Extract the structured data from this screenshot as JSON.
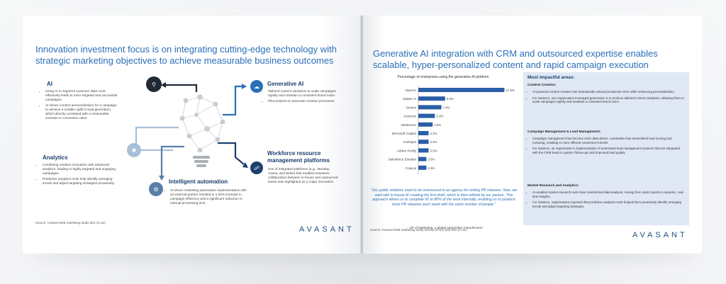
{
  "left": {
    "title": "Innovation investment focus is on integrating cutting-edge technology with strategic marketing objectives to achieve measurable business outcomes",
    "ai": {
      "heading": "AI",
      "bullets": [
        "Using AI to segment customer data more effectively leads to more targeted and successful campaigns.",
        "AI-driven content personalization for a campaign to achieve a notable uplift in lead generation, which directly correlated with a measurable increase in conversion rates."
      ]
    },
    "analytics": {
      "heading": "Analytics",
      "bullets": [
        "Combining creative innovation with advanced analytics, leading to highly targeted and engaging campaigns.",
        "Predictive analytics tools help identify emerging trends and adjust targeting strategies proactively."
      ]
    },
    "genai": {
      "heading": "Generative AI",
      "bullets": [
        "Tailored content variations to scale campaigns rapidly and maintain a consistent brand voice.",
        "Pilot projects to automate creative processes."
      ]
    },
    "workforce": {
      "heading": "Workforce resource management platforms",
      "bullets": [
        "Use of integrated platforms (e.g., Monday, Asana, and Wrike) that enabled seamless collaboration between in-house and outsourced teams was highlighted as a major innovation."
      ]
    },
    "automation": {
      "heading": "Intelligent automation",
      "bullets": [
        "AI-driven marketing automation implementation with an external partner resulted in a 20% increase in campaign efficiency and a significant reduction in manual processing time."
      ]
    },
    "source": "Source: Avasant B2B marketing study IDIs (n=11)",
    "logo": "AVASANT"
  },
  "right": {
    "title": "Generative AI integration with CRM and outsourced expertise enables scalable, hyper-personalized content and rapid campaign execution",
    "quote": "“Our public relations used to be outsourced to an agency for writing PR releases. Now, we start with in-house AI creating the first draft, which is then refined by our partner. This approach allows us to complete 50 to 80% of the work internally, enabling us to produce more PR releases each week with the same number of people.”",
    "quote_attr": "- VP of Marketing, a global automotive manufacturer",
    "source": "Source: Avasant B2B marketing study survey (n=67) and IDIs (n=11)",
    "logo": "AVASANT",
    "panel": {
      "title": "Most impactful areas:",
      "s1": "Content Creation:",
      "s1_bullets": [
        "AI-powered content creation has dramatically reduced production time while enhancing personalization.",
        "For instance, one organization leveraged generative AI to produce tailored content variations, allowing them to scale campaigns rapidly and maintain a consistent brand voice."
      ],
      "s2": "Campaign Management & Lead Management:",
      "s2_bullets": [
        "Campaign management has become more data-driven. Automation has streamlined lead scoring and nurturing, resulting in more efficient conversion funnels.",
        "For instance, an organization’s implementation of automated lead management systems that are integrated with the CRM leads to quicker follow-ups and improved lead quality."
      ],
      "s3": "Market Research and Analytics:",
      "s3_bullets": [
        "AI-enabled market research tools have transformed data analysis, moving from static reports to dynamic, real-time insights.",
        "For instance, organizations reported that predictive analytics tools helped them proactively identify emerging trends and adjust targeting strategies."
      ]
    }
  },
  "chart_data": {
    "type": "bar",
    "orientation": "horizontal",
    "title": "Percentage of enterprises using the generative AI platform",
    "categories": [
      "OpenAI",
      "Jasper AI",
      "Gemini",
      "Anyword",
      "Writesonic",
      "Microsoft Copilot",
      "HubSpot",
      "Adobe Firefly",
      "Salesforce Einstein",
      "Copy.ai"
    ],
    "values": [
      27.6,
      8.6,
      7.4,
      5.3,
      4.6,
      3.3,
      3.3,
      3.3,
      2.6,
      2.6
    ],
    "labels": [
      "27.6%",
      "8.6%",
      "7.4%",
      "5.3%",
      "4.6%",
      "3.3%",
      "3.3%",
      "3.3%",
      "2.6%",
      "2.6%"
    ],
    "color": "#2a5fa8",
    "xlim": [
      0,
      30
    ]
  }
}
